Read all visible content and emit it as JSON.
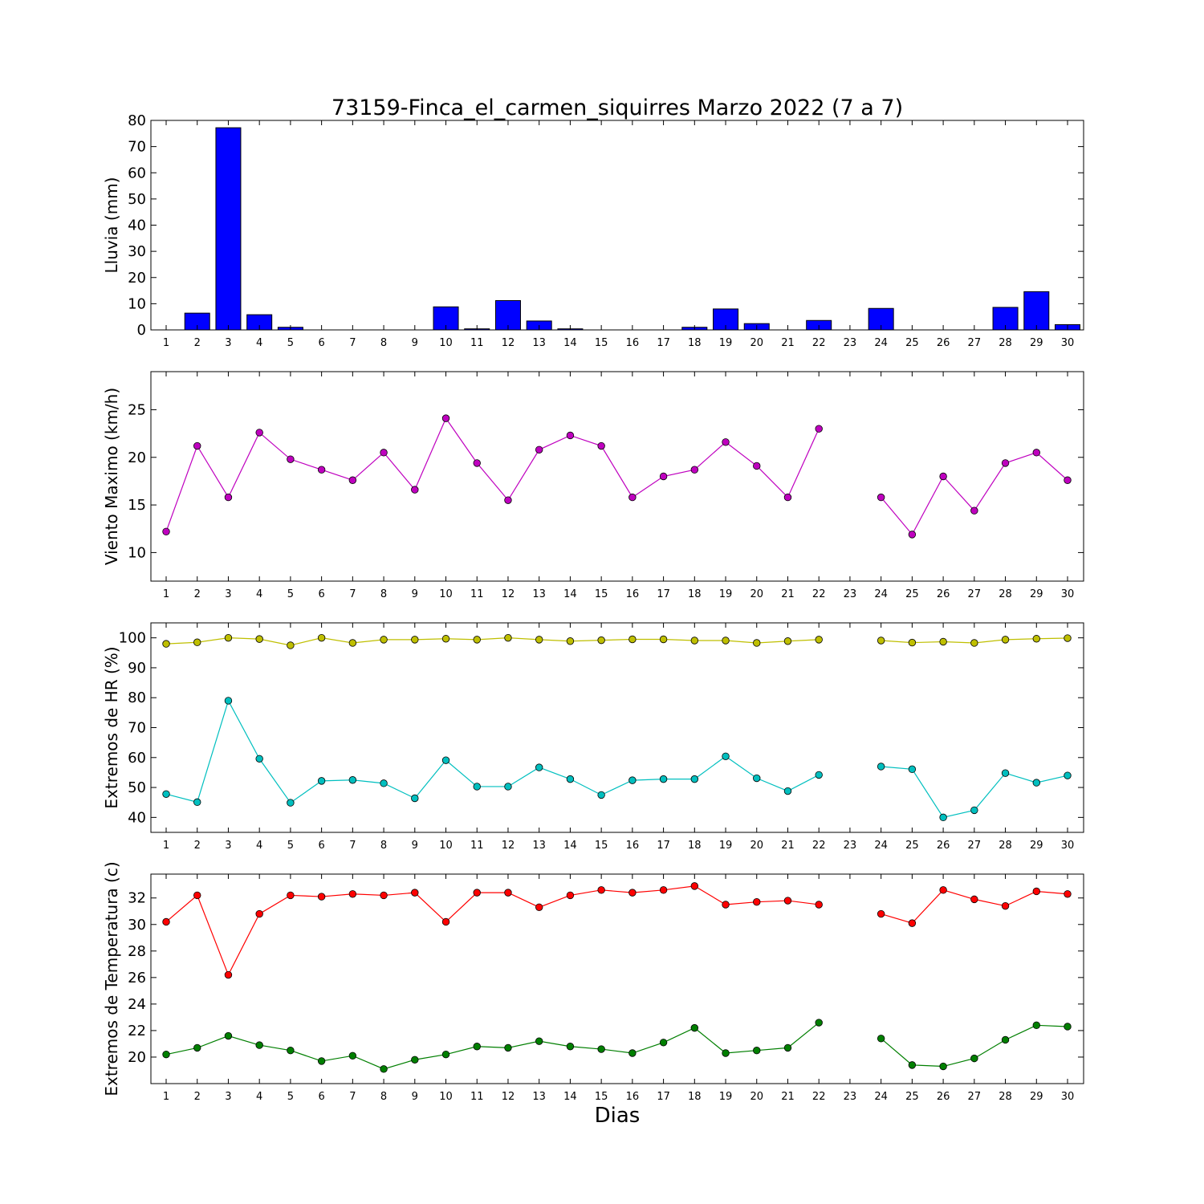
{
  "title": "73159-Finca_el_carmen_siquirres Marzo 2022  (7 a 7)",
  "xlabel": "Dias",
  "chart_data": [
    {
      "type": "bar",
      "ylabel": "Lluvia (mm)",
      "ylim": [
        0,
        80
      ],
      "yticks": [
        0,
        10,
        20,
        30,
        40,
        50,
        60,
        70,
        80
      ],
      "categories": [
        1,
        2,
        3,
        4,
        5,
        6,
        7,
        8,
        9,
        10,
        11,
        12,
        13,
        14,
        15,
        16,
        17,
        18,
        19,
        20,
        21,
        22,
        23,
        24,
        25,
        26,
        27,
        28,
        29,
        30
      ],
      "series": [
        {
          "values": [
            0,
            6.4,
            77.2,
            5.8,
            1.0,
            0,
            0,
            0,
            0,
            8.8,
            0.4,
            11.2,
            3.4,
            0.4,
            0,
            0,
            0,
            1.0,
            8.0,
            2.4,
            0,
            3.6,
            null,
            8.2,
            0,
            0,
            0,
            8.6,
            14.6,
            2.0
          ],
          "color": "#0000ff"
        }
      ]
    },
    {
      "type": "line",
      "ylabel": "Viento Maximo (km/h)",
      "ylim": [
        7,
        29
      ],
      "yticks": [
        10,
        15,
        20,
        25
      ],
      "categories": [
        1,
        2,
        3,
        4,
        5,
        6,
        7,
        8,
        9,
        10,
        11,
        12,
        13,
        14,
        15,
        16,
        17,
        18,
        19,
        20,
        21,
        22,
        23,
        24,
        25,
        26,
        27,
        28,
        29,
        30
      ],
      "series": [
        {
          "values": [
            12.2,
            21.2,
            15.8,
            22.6,
            19.8,
            18.7,
            17.6,
            20.5,
            16.6,
            24.1,
            19.4,
            15.5,
            20.8,
            22.3,
            21.2,
            15.8,
            18.0,
            18.7,
            21.6,
            19.1,
            15.8,
            23.0,
            null,
            15.8,
            11.9,
            18.0,
            14.4,
            19.4,
            20.5,
            17.6
          ],
          "color": "#bf00bf"
        }
      ]
    },
    {
      "type": "line",
      "ylabel": "Extremos de HR (%)",
      "ylim": [
        35,
        105
      ],
      "yticks": [
        40,
        50,
        60,
        70,
        80,
        90,
        100
      ],
      "categories": [
        1,
        2,
        3,
        4,
        5,
        6,
        7,
        8,
        9,
        10,
        11,
        12,
        13,
        14,
        15,
        16,
        17,
        18,
        19,
        20,
        21,
        22,
        23,
        24,
        25,
        26,
        27,
        28,
        29,
        30
      ],
      "series": [
        {
          "values": [
            98.0,
            98.5,
            100.0,
            99.6,
            97.5,
            100.0,
            98.3,
            99.4,
            99.4,
            99.7,
            99.4,
            100.0,
            99.4,
            98.9,
            99.2,
            99.5,
            99.5,
            99.1,
            99.1,
            98.3,
            98.9,
            99.4,
            null,
            99.1,
            98.4,
            98.7,
            98.3,
            99.4,
            99.7,
            99.9
          ],
          "color": "#bfbf00"
        },
        {
          "values": [
            47.8,
            45.1,
            79.0,
            59.6,
            44.9,
            52.2,
            52.5,
            51.4,
            46.4,
            59.1,
            50.3,
            50.3,
            56.7,
            52.8,
            47.5,
            52.4,
            52.8,
            52.8,
            60.4,
            53.1,
            48.8,
            54.2,
            null,
            57.0,
            56.1,
            40.0,
            42.4,
            54.8,
            51.6,
            54.0
          ],
          "color": "#00bfbf"
        }
      ]
    },
    {
      "type": "line",
      "ylabel": "Extremos de Temperatura (c)",
      "ylim": [
        18,
        33.8
      ],
      "yticks": [
        20,
        22,
        24,
        26,
        28,
        30,
        32
      ],
      "categories": [
        1,
        2,
        3,
        4,
        5,
        6,
        7,
        8,
        9,
        10,
        11,
        12,
        13,
        14,
        15,
        16,
        17,
        18,
        19,
        20,
        21,
        22,
        23,
        24,
        25,
        26,
        27,
        28,
        29,
        30
      ],
      "series": [
        {
          "values": [
            30.2,
            32.2,
            26.2,
            30.8,
            32.2,
            32.1,
            32.3,
            32.2,
            32.4,
            30.2,
            32.4,
            32.4,
            31.3,
            32.2,
            32.6,
            32.4,
            32.6,
            32.9,
            31.5,
            31.7,
            31.8,
            31.5,
            null,
            30.8,
            30.1,
            32.6,
            31.9,
            31.4,
            32.5,
            32.3
          ],
          "color": "#ff0000"
        },
        {
          "values": [
            20.2,
            20.7,
            21.6,
            20.9,
            20.5,
            19.7,
            20.1,
            19.1,
            19.8,
            20.2,
            20.8,
            20.7,
            21.2,
            20.8,
            20.6,
            20.3,
            21.1,
            22.2,
            20.3,
            20.5,
            20.7,
            22.6,
            null,
            21.4,
            19.4,
            19.3,
            19.9,
            21.3,
            22.4,
            22.3
          ],
          "color": "#007f00"
        }
      ]
    }
  ]
}
